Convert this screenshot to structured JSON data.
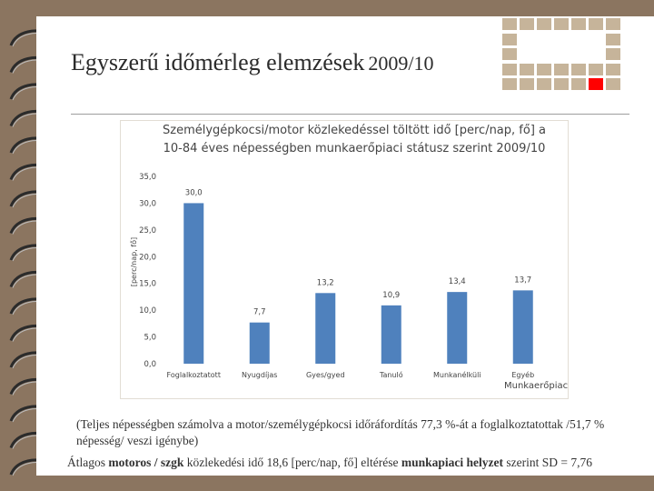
{
  "slide": {
    "title_main": "Egyszerű időmérleg elemzések",
    "title_year": "2009/10",
    "footnote": "(Teljes népességben számolva a motor/személygépkocsi időráfordítás 77,3 %-át a foglalkoztatottak /51,7 % népesség/ veszi igénybe)",
    "summary": {
      "part1": "Átlagos ",
      "bold1": "motoros / szgk",
      "part2": " közlekedési idő 18,6 [perc/nap, fő] eltérése ",
      "bold2": "munkapiaci helyzet",
      "part3": " szerint SD = 7,76"
    }
  },
  "colors": {
    "bar": "#4f81bd",
    "background": "#8b7560",
    "accent_red": "#ff0000",
    "deco_tan": "#c6b49a"
  },
  "chart_data": {
    "type": "bar",
    "title": "Személygépkocsi/motor közlekedéssel töltött idő [perc/nap, fő] a 10-84 éves népességben munkaerőpiaci státusz szerint 2009/10",
    "ylabel": "[perc/nap, fő]",
    "xlabel": "Munkaerőpiac",
    "categories": [
      "Foglalkoztatott",
      "Nyugdíjas",
      "Gyes/gyed",
      "Tanuló",
      "Munkanélküli",
      "Egyéb"
    ],
    "values": [
      30.0,
      7.7,
      13.2,
      10.9,
      13.4,
      13.7
    ],
    "value_labels": [
      "30,0",
      "7,7",
      "13,2",
      "10,9",
      "13,4",
      "13,7"
    ],
    "ylim": [
      0,
      35
    ],
    "yticks": [
      "0,0",
      "5,0",
      "10,0",
      "15,0",
      "20,0",
      "25,0",
      "30,0",
      "35,0"
    ],
    "grid": false,
    "legend": "none"
  }
}
